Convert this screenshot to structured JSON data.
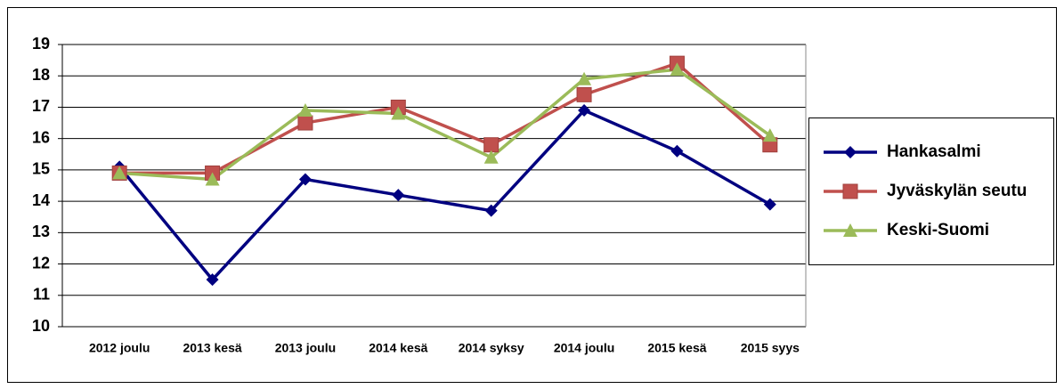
{
  "chart_data": {
    "type": "line",
    "categories": [
      "2012 joulu",
      "2013 kesä",
      "2013 joulu",
      "2014 kesä",
      "2014 syksy",
      "2014 joulu",
      "2015 kesä",
      "2015 syys"
    ],
    "series": [
      {
        "name": "Hankasalmi",
        "color": "#000080",
        "marker": "diamond",
        "values": [
          15.1,
          11.5,
          14.7,
          14.2,
          13.7,
          16.9,
          15.6,
          13.9
        ]
      },
      {
        "name": "Jyväskylän seutu",
        "color": "#c0504d",
        "marker": "square",
        "values": [
          14.9,
          14.9,
          16.5,
          17.0,
          15.8,
          17.4,
          18.4,
          15.8
        ]
      },
      {
        "name": "Keski-Suomi",
        "color": "#9bbb59",
        "marker": "triangle",
        "values": [
          14.9,
          14.7,
          16.9,
          16.8,
          15.4,
          17.9,
          18.2,
          16.1
        ]
      }
    ],
    "ylim": [
      10,
      19
    ],
    "yticks": [
      10,
      11,
      12,
      13,
      14,
      15,
      16,
      17,
      18,
      19
    ],
    "grid": true,
    "legend": "right"
  }
}
